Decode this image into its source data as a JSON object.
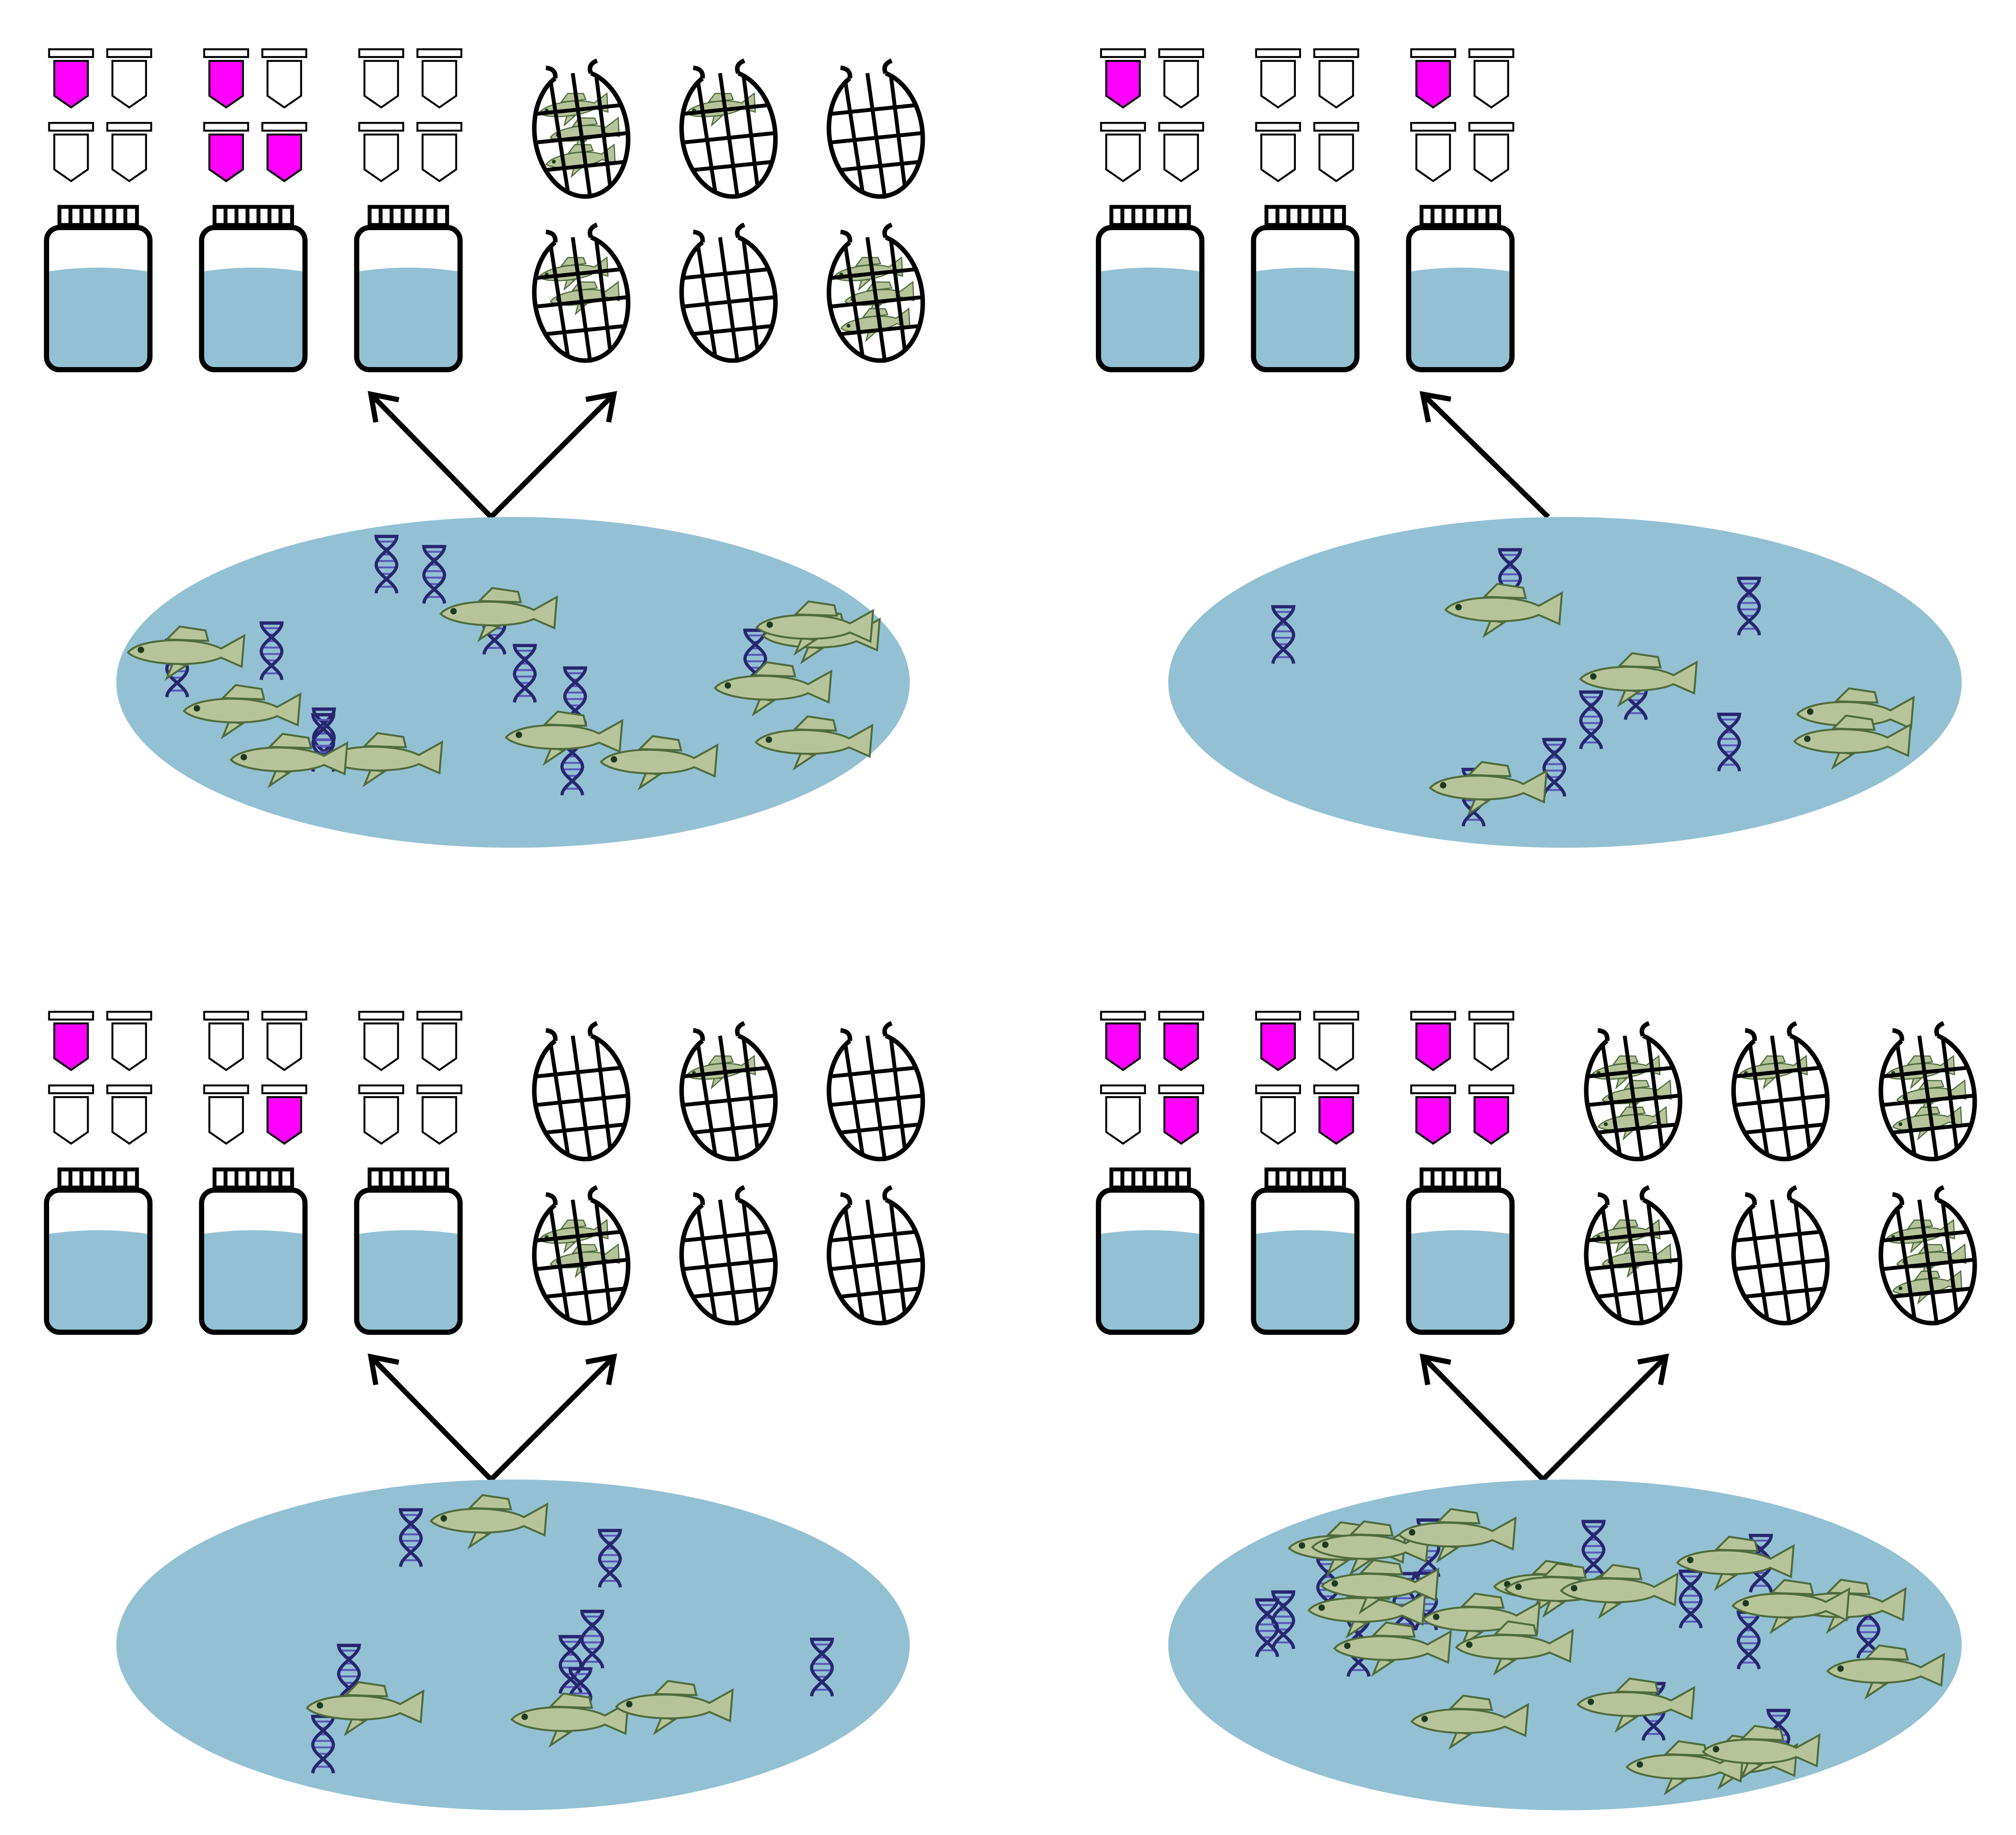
{
  "panels": [
    {
      "tubes": [
        [
          true,
          false,
          false,
          false
        ],
        [
          true,
          false,
          true,
          true
        ],
        [
          false,
          false,
          false,
          false
        ]
      ],
      "jars": 3,
      "nets": [
        3,
        1,
        0,
        2,
        0,
        3
      ],
      "arrows": 2,
      "pond": {
        "fish": 11,
        "dna": 11
      }
    },
    {
      "tubes": [
        [
          true,
          false,
          false,
          false
        ],
        [
          false,
          false,
          false,
          false
        ],
        [
          true,
          false,
          false,
          false
        ]
      ],
      "jars": 3,
      "nets": null,
      "arrows": 1,
      "pond": {
        "fish": 5,
        "dna": 8
      }
    },
    {
      "tubes": [
        [
          true,
          false,
          false,
          false
        ],
        [
          false,
          false,
          false,
          true
        ],
        [
          false,
          false,
          false,
          false
        ]
      ],
      "jars": 3,
      "nets": [
        0,
        1,
        0,
        2,
        0,
        0
      ],
      "arrows": 2,
      "pond": {
        "fish": 4,
        "dna": 8
      }
    },
    {
      "tubes": [
        [
          true,
          true,
          false,
          true
        ],
        [
          true,
          false,
          false,
          true
        ],
        [
          true,
          false,
          true,
          true
        ]
      ],
      "jars": 3,
      "nets": [
        3,
        1,
        3,
        2,
        0,
        3
      ],
      "arrows": 2,
      "pond": {
        "fish": 20,
        "dna": 14
      }
    }
  ]
}
